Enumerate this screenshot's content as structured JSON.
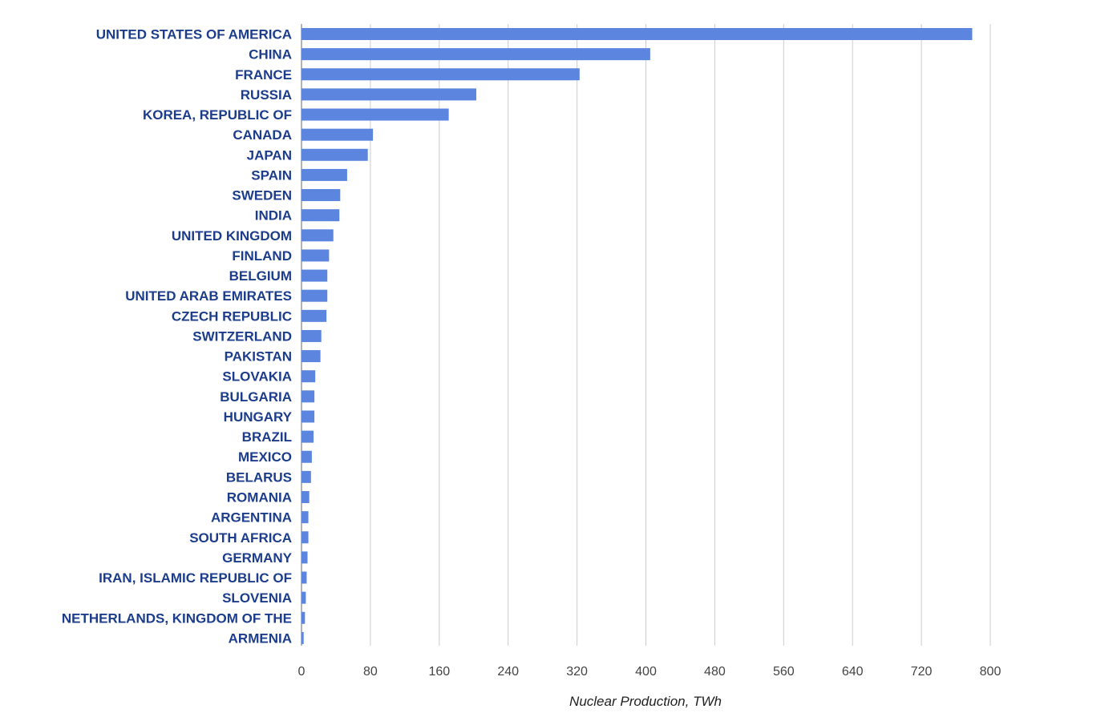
{
  "chart_data": {
    "type": "bar",
    "orientation": "horizontal",
    "xlabel": "Nuclear Production, TWh",
    "ylabel": "",
    "xlim": [
      0,
      800
    ],
    "xticks": [
      0,
      80,
      160,
      240,
      320,
      400,
      480,
      560,
      640,
      720,
      800
    ],
    "grid": true,
    "legend": "none",
    "bar_color": "#5b85de",
    "label_color": "#1c3c8c",
    "categories": [
      "UNITED STATES OF AMERICA",
      "CHINA",
      "FRANCE",
      "RUSSIA",
      "KOREA, REPUBLIC OF",
      "CANADA",
      "JAPAN",
      "SPAIN",
      "SWEDEN",
      "INDIA",
      "UNITED KINGDOM",
      "FINLAND",
      "BELGIUM",
      "UNITED ARAB EMIRATES",
      "CZECH REPUBLIC",
      "SWITZERLAND",
      "PAKISTAN",
      "SLOVAKIA",
      "BULGARIA",
      "HUNGARY",
      "BRAZIL",
      "MEXICO",
      "BELARUS",
      "ROMANIA",
      "ARGENTINA",
      "SOUTH AFRICA",
      "GERMANY",
      "IRAN, ISLAMIC REPUBLIC OF",
      "SLOVENIA",
      "NETHERLANDS, KINGDOM OF THE",
      "ARMENIA"
    ],
    "values": [
      779,
      405,
      323,
      203,
      171,
      83,
      77,
      53,
      45,
      44,
      37,
      32,
      30,
      30,
      29,
      23,
      22,
      16,
      15,
      15,
      14,
      12,
      11,
      9,
      8,
      8,
      7,
      6,
      5,
      4,
      2.5
    ]
  }
}
